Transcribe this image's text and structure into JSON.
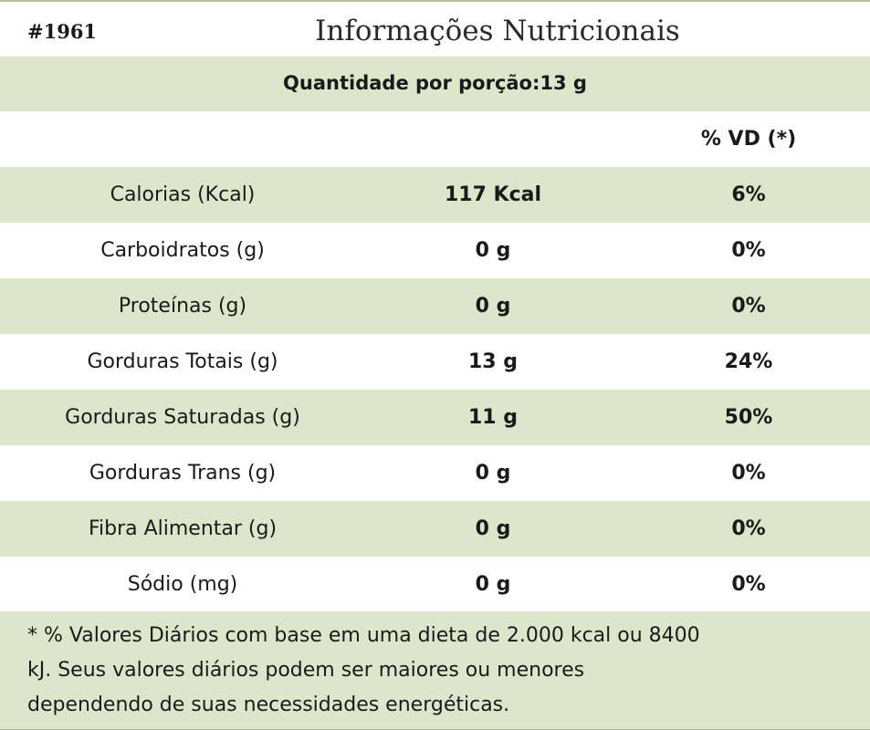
{
  "header": {
    "product_code": "#1961",
    "title": "Informações Nutricionais"
  },
  "serving": {
    "label": "Quantidade por porção:13 g"
  },
  "columns": {
    "daily_value": "% VD (*)"
  },
  "nutrients": [
    {
      "name": "Calorias (Kcal)",
      "amount": "117 Kcal",
      "dv": "6%"
    },
    {
      "name": "Carboidratos (g)",
      "amount": "0 g",
      "dv": "0%"
    },
    {
      "name": "Proteínas (g)",
      "amount": "0 g",
      "dv": "0%"
    },
    {
      "name": "Gorduras Totais (g)",
      "amount": "13 g",
      "dv": "24%"
    },
    {
      "name": "Gorduras Saturadas (g)",
      "amount": "11 g",
      "dv": "50%"
    },
    {
      "name": "Gorduras Trans (g)",
      "amount": "0 g",
      "dv": "0%"
    },
    {
      "name": "Fibra Alimentar (g)",
      "amount": "0 g",
      "dv": "0%"
    },
    {
      "name": "Sódio (mg)",
      "amount": "0 g",
      "dv": "0%"
    }
  ],
  "footnote": {
    "line1": "* % Valores Diários com base em uma dieta de 2.000 kcal ou 8400",
    "line2": "kJ. Seus valores diários podem ser maiores ou menores",
    "line3": "dependendo de suas necessidades energéticas."
  },
  "colors": {
    "shade": "#dde6cb",
    "border": "#b7c39c"
  }
}
